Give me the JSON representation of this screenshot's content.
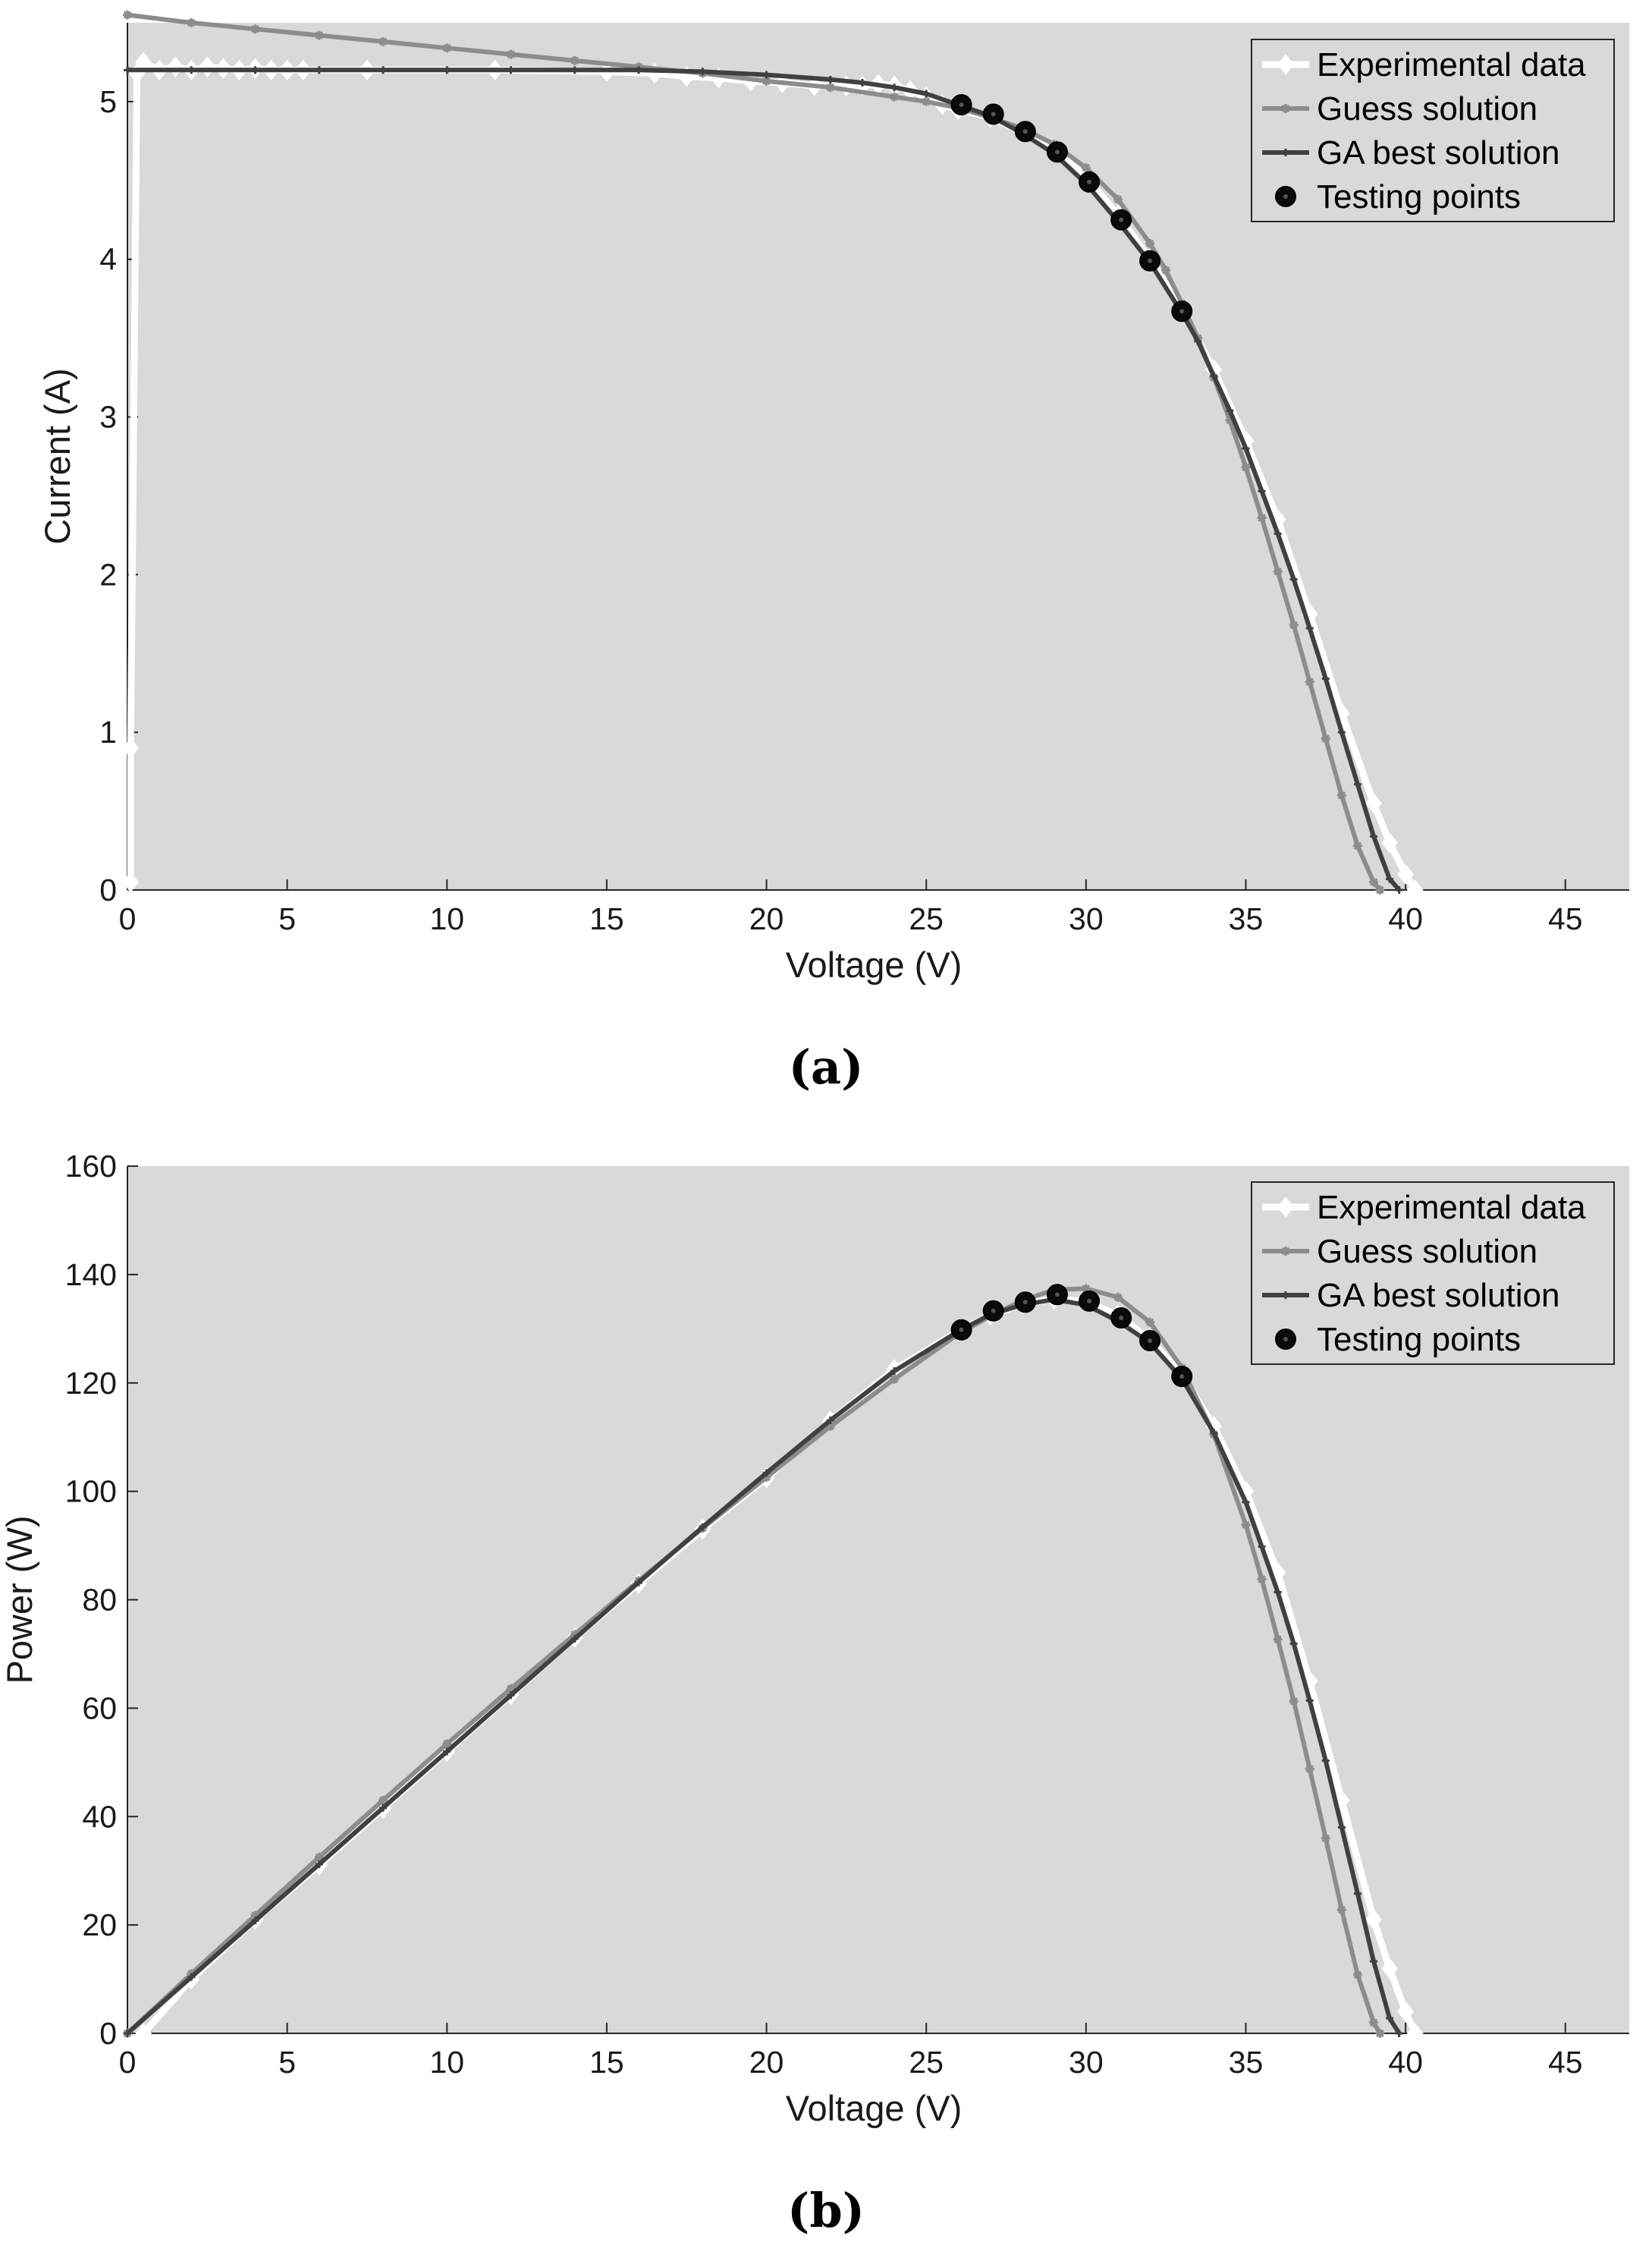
{
  "colors": {
    "plot_bg": "#d9d9d9",
    "experimental": "#ffffff",
    "guess": "#8c8c8c",
    "ga_best": "#404040",
    "testing": "#0a0a0a"
  },
  "chart_data": [
    {
      "type": "line",
      "caption": "(a)",
      "xlabel": "Voltage (V)",
      "ylabel": "Current (A)",
      "xlim": [
        0,
        47
      ],
      "ylim": [
        0,
        5.5
      ],
      "xticks": [
        0,
        5,
        10,
        15,
        20,
        25,
        30,
        35,
        40,
        45
      ],
      "yticks": [
        0,
        1,
        2,
        3,
        4,
        5
      ],
      "grid": false,
      "legend_position": "top-right",
      "legend": [
        "Experimental data",
        "Guess solution",
        "GA best solution",
        "Testing points"
      ],
      "series": [
        {
          "name": "Experimental data",
          "marker": "diamond",
          "x": [
            0.1,
            0.1,
            0.3,
            0.5,
            1.0,
            1.5,
            2.0,
            2.5,
            3.0,
            3.5,
            4.0,
            4.5,
            5.0,
            5.5,
            7.5,
            11.5,
            15.0,
            16.5,
            17.5,
            18.5,
            19.5,
            20.5,
            21.5,
            22.5,
            23.0,
            23.5,
            24.0,
            24.5,
            25.0,
            25.5,
            26.0,
            27.0,
            28.0,
            29.0,
            30.0,
            31.0,
            32.0,
            33.0,
            34.0,
            35.0,
            36.0,
            37.0,
            38.0,
            39.0,
            39.5,
            40.0,
            40.3
          ],
          "y": [
            0.05,
            0.9,
            5.18,
            5.25,
            5.2,
            5.22,
            5.2,
            5.22,
            5.21,
            5.2,
            5.21,
            5.2,
            5.2,
            5.2,
            5.2,
            5.2,
            5.19,
            5.18,
            5.16,
            5.15,
            5.13,
            5.12,
            5.1,
            5.1,
            5.1,
            5.11,
            5.1,
            5.07,
            5.03,
            4.98,
            4.95,
            4.9,
            4.81,
            4.7,
            4.52,
            4.28,
            4.0,
            3.68,
            3.3,
            2.85,
            2.35,
            1.75,
            1.12,
            0.55,
            0.3,
            0.1,
            0.0
          ]
        },
        {
          "name": "Guess solution",
          "marker": "star",
          "x": [
            0,
            2,
            4,
            6,
            8,
            10,
            12,
            14,
            16,
            18,
            20,
            22,
            24,
            25,
            26,
            27,
            28,
            29,
            30,
            31,
            32,
            32.5,
            33,
            33.5,
            34,
            34.5,
            35,
            35.5,
            36,
            36.5,
            37,
            37.5,
            38,
            38.5,
            39,
            39.2
          ],
          "y": [
            5.55,
            5.5,
            5.46,
            5.42,
            5.38,
            5.34,
            5.3,
            5.26,
            5.22,
            5.18,
            5.13,
            5.09,
            5.03,
            5.0,
            4.96,
            4.9,
            4.83,
            4.73,
            4.58,
            4.38,
            4.1,
            3.93,
            3.72,
            3.5,
            3.25,
            2.98,
            2.68,
            2.36,
            2.02,
            1.68,
            1.32,
            0.96,
            0.6,
            0.28,
            0.05,
            0.0
          ]
        },
        {
          "name": "GA best solution",
          "marker": "plus",
          "x": [
            0,
            2,
            4,
            6,
            8,
            10,
            12,
            14,
            16,
            18,
            20,
            22,
            23,
            24,
            25,
            26,
            27,
            28,
            29,
            30,
            31,
            32,
            33,
            33.5,
            34,
            34.5,
            35,
            35.5,
            36,
            36.5,
            37,
            37.5,
            38,
            38.5,
            39,
            39.5,
            39.8
          ],
          "y": [
            5.2,
            5.2,
            5.2,
            5.2,
            5.2,
            5.2,
            5.2,
            5.2,
            5.2,
            5.19,
            5.17,
            5.14,
            5.12,
            5.09,
            5.05,
            4.98,
            4.91,
            4.8,
            4.67,
            4.48,
            4.24,
            3.98,
            3.66,
            3.48,
            3.26,
            3.04,
            2.8,
            2.53,
            2.26,
            1.97,
            1.66,
            1.34,
            1.0,
            0.67,
            0.34,
            0.07,
            0.0
          ]
        },
        {
          "name": "Testing points",
          "marker": "circle",
          "x": [
            26.1,
            27.1,
            28.1,
            29.1,
            30.1,
            31.1,
            32.0,
            33.0
          ],
          "y": [
            4.98,
            4.92,
            4.81,
            4.68,
            4.49,
            4.25,
            3.99,
            3.67
          ]
        }
      ]
    },
    {
      "type": "line",
      "caption": "(b)",
      "xlabel": "Voltage (V)",
      "ylabel": "Power (W)",
      "xlim": [
        0,
        47
      ],
      "ylim": [
        0,
        160
      ],
      "xticks": [
        0,
        5,
        10,
        15,
        20,
        25,
        30,
        35,
        40,
        45
      ],
      "yticks": [
        0,
        20,
        40,
        60,
        80,
        100,
        120,
        140,
        160
      ],
      "grid": false,
      "legend_position": "top-right",
      "legend": [
        "Experimental data",
        "Guess solution",
        "GA best solution",
        "Testing points"
      ],
      "series": [
        {
          "name": "Experimental data",
          "marker": "diamond",
          "x": [
            0.5,
            2,
            4,
            6,
            8,
            10,
            12,
            14,
            16,
            18,
            20,
            22,
            24,
            26,
            27,
            28,
            29,
            30,
            31,
            32,
            33,
            34,
            35,
            36,
            37,
            38,
            39,
            39.5,
            40.0,
            40.3
          ],
          "y": [
            0,
            10,
            21,
            31,
            41.5,
            52,
            62.5,
            73,
            83,
            93,
            102.5,
            113,
            122.5,
            129.5,
            132.5,
            134.5,
            135.5,
            135,
            132.5,
            128,
            121.5,
            112,
            100,
            85,
            65,
            43,
            21,
            12,
            4,
            0
          ]
        },
        {
          "name": "Guess solution",
          "marker": "star",
          "x": [
            0,
            2,
            4,
            6,
            8,
            10,
            12,
            14,
            16,
            18,
            20,
            22,
            24,
            26,
            27,
            28,
            29,
            30,
            31,
            32,
            33,
            34,
            35,
            35.5,
            36,
            36.5,
            37,
            37.5,
            38,
            38.5,
            39,
            39.2
          ],
          "y": [
            0,
            11,
            21.8,
            32.5,
            43,
            53.4,
            63.6,
            73.6,
            83.5,
            93.2,
            102.6,
            112,
            120.7,
            129,
            132.3,
            135.2,
            137.2,
            137.4,
            135.8,
            131.2,
            122.8,
            110.5,
            93.8,
            83.8,
            72.7,
            61.3,
            48.8,
            36,
            22.8,
            10.8,
            2,
            0
          ]
        },
        {
          "name": "GA best solution",
          "marker": "plus",
          "x": [
            0,
            2,
            4,
            6,
            8,
            10,
            12,
            14,
            16,
            18,
            20,
            22,
            24,
            26,
            27,
            28,
            29,
            30,
            31,
            32,
            33,
            34,
            35,
            35.5,
            36,
            36.5,
            37,
            37.5,
            38,
            38.5,
            39,
            39.5,
            39.8
          ],
          "y": [
            0,
            10.4,
            20.8,
            31.2,
            41.6,
            52,
            62.4,
            72.8,
            83.2,
            93.4,
            103.4,
            113.1,
            122.2,
            129.5,
            132.6,
            134.4,
            135.4,
            134.4,
            131.4,
            127.4,
            120.8,
            110.8,
            98,
            89.8,
            81.4,
            71.9,
            61.4,
            50.3,
            38,
            25.8,
            13.3,
            2.8,
            0
          ]
        },
        {
          "name": "Testing points",
          "marker": "circle",
          "x": [
            26.1,
            27.1,
            28.1,
            29.1,
            30.1,
            31.1,
            32.0,
            33.0
          ],
          "y": [
            129.8,
            133.3,
            134.9,
            136.3,
            135.1,
            132.0,
            127.8,
            121.2
          ]
        }
      ]
    }
  ]
}
